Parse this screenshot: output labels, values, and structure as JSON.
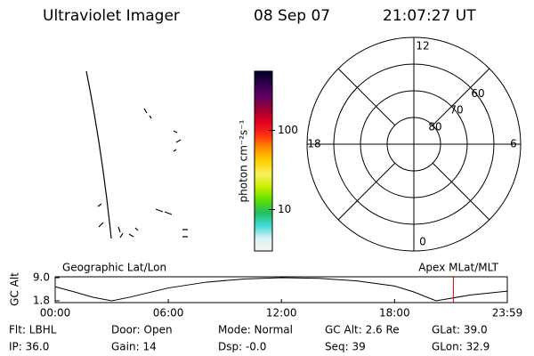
{
  "header": {
    "title": "Ultraviolet Imager",
    "date": "08 Sep 07",
    "time": "21:07:27 UT"
  },
  "chart_data": [
    {
      "type": "colorbar",
      "label": "photon cm⁻²s⁻¹",
      "log": true,
      "ylim": [
        3,
        560
      ],
      "yticks": [
        10,
        100
      ],
      "colors": [
        "#f4f4f4",
        "#d8f4f4",
        "#40d8d8",
        "#20c060",
        "#60e000",
        "#c8f000",
        "#f8f060",
        "#ffd000",
        "#ff9000",
        "#ff3010",
        "#e00020",
        "#a00030",
        "#600060",
        "#300050",
        "#000020"
      ]
    },
    {
      "type": "polar",
      "rlim": [
        90,
        50
      ],
      "rticks": [
        60,
        70,
        80
      ],
      "angular_ticks": [
        {
          "value": 12,
          "label": "12"
        },
        {
          "value": 18,
          "label": "18"
        },
        {
          "value": 0,
          "label": "0"
        },
        {
          "value": 6,
          "label": "6"
        }
      ]
    },
    {
      "type": "line",
      "ylabel": "GC Alt",
      "left_label": "Geographic Lat/Lon",
      "right_label": "Apex MLat/MLT",
      "x": [
        0,
        1,
        2,
        3,
        4,
        6,
        8,
        10,
        12,
        14,
        16,
        18,
        19,
        20.2,
        21,
        22,
        23.98
      ],
      "values": [
        6.2,
        4.6,
        2.9,
        1.8,
        3.0,
        5.8,
        7.6,
        8.6,
        9.0,
        8.8,
        8.0,
        6.4,
        4.6,
        1.8,
        2.6,
        3.6,
        4.8
      ],
      "color": "#000000",
      "marker_x": 21.12,
      "marker_color": "#e00000",
      "xlim": [
        0,
        23.98
      ],
      "ylim": [
        1.25,
        9.28
      ],
      "xticks": [
        {
          "value": 0,
          "label": "00:00"
        },
        {
          "value": 6,
          "label": "06:00"
        },
        {
          "value": 12,
          "label": "12:00"
        },
        {
          "value": 18,
          "label": "18:00"
        },
        {
          "value": 23.98,
          "label": "23:59"
        }
      ],
      "yticks": [
        {
          "value": 1.8,
          "label": "1.8"
        },
        {
          "value": 9.0,
          "label": "9.0"
        }
      ]
    }
  ],
  "info": {
    "rows": [
      [
        "Flt: LBHL",
        "Door: Open",
        "Mode: Normal",
        "GC Alt: 2.6 Re",
        "GLat: 39.0"
      ],
      [
        "IP: 36.0",
        "Gain: 14",
        "Dsp: -0.0",
        "Seq: 39",
        "GLon: 32.9"
      ]
    ]
  }
}
